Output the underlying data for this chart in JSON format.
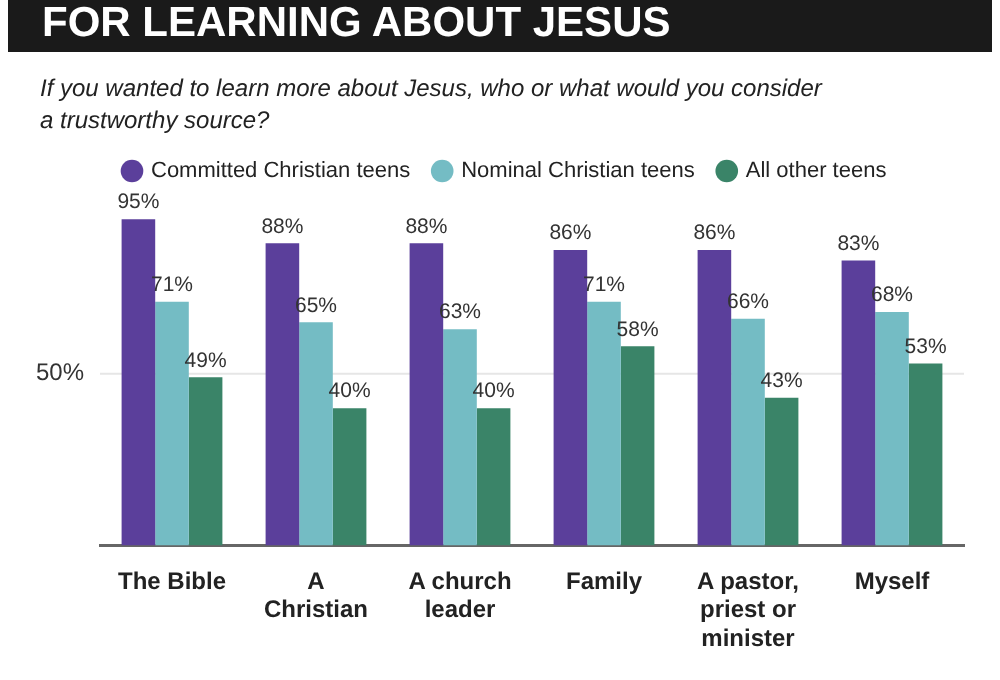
{
  "chart_data": {
    "type": "bar",
    "title": "FOR LEARNING ABOUT JESUS",
    "subtitle": "If you wanted to learn more about Jesus, who or what would you consider a trustworthy source?",
    "categories": [
      "The Bible",
      "A Christian",
      "A church leader",
      "Family",
      "A pastor, priest or minister",
      "Myself"
    ],
    "series": [
      {
        "name": "Committed Christian teens",
        "color": "#5b3f9b",
        "values": [
          95,
          88,
          88,
          86,
          86,
          83
        ],
        "value_labels": [
          "95%",
          "88%",
          "88%",
          "86%",
          "86%",
          "83%"
        ]
      },
      {
        "name": "Nominal Christian teens",
        "color": "#74bcc4",
        "values": [
          71,
          65,
          63,
          71,
          66,
          68
        ],
        "value_labels": [
          "71%",
          "65%",
          "63%",
          "71%",
          "66%",
          "68%"
        ]
      },
      {
        "name": "All other teens",
        "color": "#3a8468",
        "values": [
          49,
          40,
          40,
          58,
          43,
          53
        ],
        "value_labels": [
          "49%",
          "40%",
          "40%",
          "58%",
          "43%",
          "53%"
        ]
      }
    ],
    "ref_lines": [
      {
        "axis": "y",
        "value": 50,
        "label": "50%",
        "color": "#e6e6e6"
      }
    ],
    "legend": "top left"
  }
}
